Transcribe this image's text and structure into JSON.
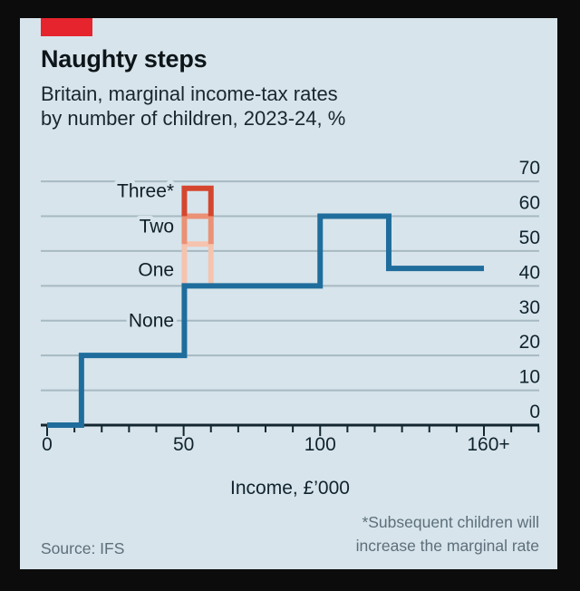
{
  "window": {
    "background": "#0c0c0c"
  },
  "card": {
    "background": "#d7e4eb",
    "accent_tab_color": "#e5242e"
  },
  "header": {
    "title": "Naughty steps",
    "subtitle_lines": [
      "Britain, marginal income-tax rates",
      "by number of children, 2023-24, %"
    ]
  },
  "footer": {
    "source": "Source: IFS",
    "footnote_lines": [
      "*Subsequent children will",
      "increase the marginal rate"
    ]
  },
  "chart_data": {
    "type": "line",
    "title": "Naughty steps",
    "subtitle": "Britain, marginal income-tax rates by number of children, 2023-24, %",
    "xlabel": "Income, £’000",
    "ylabel": "%",
    "x_range": [
      0,
      180
    ],
    "x_minor_step": 10,
    "x_ticks": [
      {
        "v": 0,
        "label": "0"
      },
      {
        "v": 50,
        "label": "50"
      },
      {
        "v": 100,
        "label": "100"
      },
      {
        "v": 160,
        "label": "160+"
      }
    ],
    "y_ticks": [
      0,
      10,
      20,
      30,
      40,
      50,
      60,
      70
    ],
    "y_range": [
      0,
      70
    ],
    "grid": "horizontal",
    "legend_position": "inline-annotations",
    "colors": {
      "background": "#d7e4eb",
      "grid": "#a7b9c2",
      "axis": "#13262f",
      "tick_label": "#10232e",
      "annotation_label": "#0f1e27"
    },
    "series": [
      {
        "name": "Marginal income-tax rate, no children",
        "type": "step",
        "color": "#1f6d9c",
        "stroke_width": 6,
        "points": [
          [
            0,
            0
          ],
          [
            12.57,
            0
          ],
          [
            12.57,
            20
          ],
          [
            50.27,
            20
          ],
          [
            50.27,
            40
          ],
          [
            100,
            40
          ],
          [
            100,
            60
          ],
          [
            125.14,
            60
          ],
          [
            125.14,
            45
          ],
          [
            160,
            45
          ]
        ]
      }
    ],
    "child_benefit_ladder": {
      "description": "Extra marginal rate from child-benefit withdrawal between £50k and £60k",
      "x_from": 50.27,
      "x_to": 60,
      "stroke_width": 6,
      "steps": [
        {
          "label": "One",
          "from": 40,
          "to": 52,
          "color": "#f5c3ae"
        },
        {
          "label": "Two",
          "from": 52,
          "to": 60,
          "color": "#eb9175"
        },
        {
          "label": "Three*",
          "from": 60,
          "to": 68,
          "color": "#d4462e"
        }
      ]
    },
    "annotations": [
      {
        "text": "Three*",
        "x": 46.5,
        "y": 67.4
      },
      {
        "text": "Two",
        "x": 46.5,
        "y": 57.3
      },
      {
        "text": "One",
        "x": 46.5,
        "y": 44.8
      },
      {
        "text": "None",
        "x": 46.5,
        "y": 30.2
      }
    ]
  }
}
